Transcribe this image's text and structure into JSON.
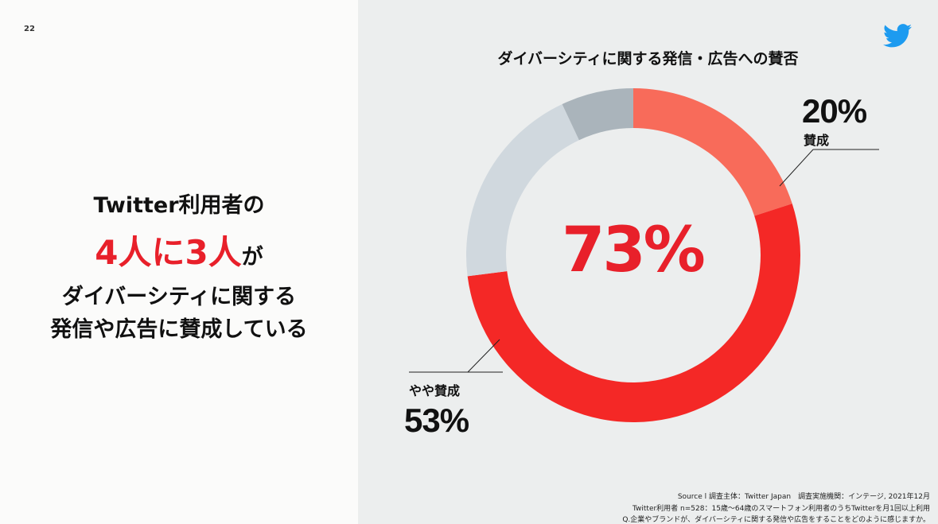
{
  "page_number": "22",
  "headline": {
    "line1": "Twitter利用者の",
    "line2_emph": "4人に3人",
    "line2_suffix": "が",
    "line3": "ダイバーシティに関する",
    "line4": "発信や広告に賛成している"
  },
  "icons": {
    "logo": "twitter-bird-icon",
    "logo_color": "#1d9bf0"
  },
  "chart_data": {
    "type": "pie",
    "title": "ダイバーシティに関する発信・広告への賛否",
    "categories": [
      "賛成",
      "やや賛成",
      "",
      ""
    ],
    "values": [
      20,
      53,
      20,
      7
    ],
    "colors": [
      "#f86b5a",
      "#f42826",
      "#d0d8de",
      "#aab4bb"
    ],
    "center_label": "73%",
    "data_labels": {
      "favor": {
        "category": "賛成",
        "value": "20%"
      },
      "somewhat_favor": {
        "category": "やや賛成",
        "value": "53%"
      }
    }
  },
  "footnotes": {
    "line1": "Source l 調査主体：Twitter Japan　調査実施機関：インテージ, 2021年12月",
    "line2": "Twitter利用者 n=528：15歳〜64歳のスマートフォン利用者のうちTwitterを月1回以上利用",
    "line3": "Q.企業やブランドが、ダイバーシティに関する発信や広告をすることをどのように感じますか。"
  }
}
